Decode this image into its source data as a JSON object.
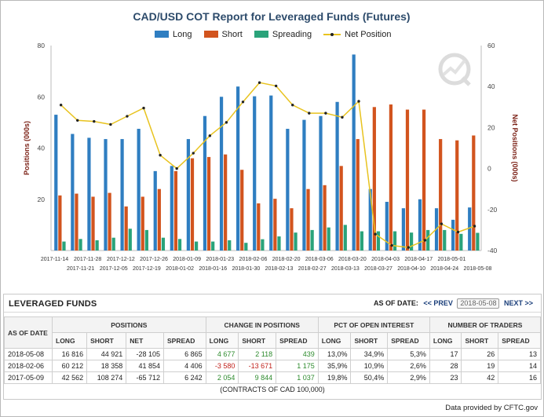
{
  "chart_data": {
    "type": "bar",
    "title": "CAD/USD COT Report for Leveraged Funds (Futures)",
    "ylabel_left": "Positions (000s)",
    "ylabel_right": "Net Positions (000s)",
    "ylim_left": [
      0,
      80
    ],
    "ylim_right": [
      -40,
      60
    ],
    "yticks_left": [
      20,
      40,
      60,
      80
    ],
    "yticks_right": [
      -40,
      -20,
      0,
      20,
      40,
      60
    ],
    "grid": false,
    "legend_position": "top",
    "categories": [
      "2017-11-14",
      "2017-11-21",
      "2017-11-28",
      "2017-12-05",
      "2017-12-12",
      "2017-12-19",
      "2017-12-26",
      "2018-01-02",
      "2018-01-09",
      "2018-01-16",
      "2018-01-23",
      "2018-01-30",
      "2018-02-06",
      "2018-02-13",
      "2018-02-20",
      "2018-02-27",
      "2018-03-06",
      "2018-03-13",
      "2018-03-20",
      "2018-03-27",
      "2018-04-03",
      "2018-04-10",
      "2018-04-17",
      "2018-04-24",
      "2018-05-01",
      "2018-05-08"
    ],
    "label_rows": [
      [
        "2017-11-14",
        "2017-11-28",
        "2017-12-12",
        "2017-12-26",
        "2018-01-09",
        "2018-01-23",
        "2018-02-06",
        "2018-02-20",
        "2018-03-06",
        "2018-03-20",
        "2018-04-03",
        "2018-04-17",
        "2018-05-01"
      ],
      [
        "2017-11-21",
        "2017-12-05",
        "2017-12-19",
        "2018-01-02",
        "2018-01-16",
        "2018-01-30",
        "2018-02-13",
        "2018-02-27",
        "2018-03-13",
        "2018-03-27",
        "2018-04-10",
        "2018-04-24",
        "2018-05-08"
      ]
    ],
    "series": [
      {
        "name": "Long",
        "axis": "left",
        "color": "#2f7ec1",
        "values": [
          53,
          45.5,
          44,
          43.5,
          43.5,
          47.5,
          31,
          33,
          43.5,
          52.5,
          60,
          64,
          60.2,
          60.5,
          47.5,
          51,
          52.5,
          58,
          76.5,
          24,
          19,
          16.5,
          20,
          16.5,
          12,
          16.8
        ]
      },
      {
        "name": "Short",
        "axis": "left",
        "color": "#d2541e",
        "values": [
          21.5,
          22.2,
          21,
          22.5,
          17.2,
          21,
          24,
          31,
          36,
          36.5,
          37.5,
          31.5,
          18.4,
          20.2,
          16.5,
          24,
          25.5,
          33,
          43.5,
          56,
          57,
          55,
          55,
          43.5,
          43,
          44.9
        ]
      },
      {
        "name": "Spreading",
        "axis": "left",
        "color": "#2aa37a",
        "values": [
          3.5,
          4.5,
          4,
          5,
          8.5,
          8,
          5,
          4.5,
          3.5,
          3.5,
          4,
          3,
          4.4,
          5.5,
          7,
          8,
          9,
          10,
          7.5,
          7.5,
          7.5,
          7,
          8,
          8,
          6.5,
          6.9
        ]
      },
      {
        "name": "Net Position",
        "axis": "right",
        "color": "#e8c31f",
        "values": [
          31,
          23.5,
          23,
          21.5,
          25.5,
          29.5,
          6.5,
          0,
          7.5,
          16,
          22.5,
          32.5,
          41.9,
          40.3,
          31,
          27,
          27,
          25,
          32.8,
          -32,
          -37.5,
          -38.5,
          -35,
          -27,
          -31,
          -28.1
        ]
      }
    ]
  },
  "legend": {
    "long": "Long",
    "short": "Short",
    "spreading": "Spreading",
    "net": "Net Position"
  },
  "panel": {
    "title": "LEVERAGED FUNDS",
    "asof_label": "AS OF DATE:",
    "prev_label": "<< PREV",
    "selected_date": "2018-05-08",
    "next_label": "NEXT >>",
    "headers": {
      "as_of_date": "AS OF DATE",
      "positions": "POSITIONS",
      "change": "CHANGE IN POSITIONS",
      "pct": "PCT OF OPEN INTEREST",
      "traders": "NUMBER OF TRADERS",
      "sub": [
        "LONG",
        "SHORT",
        "NET",
        "SPREAD",
        "LONG",
        "SHORT",
        "SPREAD",
        "LONG",
        "SHORT",
        "SPREAD",
        "LONG",
        "SHORT",
        "SPREAD"
      ]
    },
    "rows": [
      {
        "date": "2018-05-08",
        "cells": [
          "16 816",
          "44 921",
          "-28 105",
          "6 865",
          "4 677",
          "2 118",
          "439",
          "13,0%",
          "34,9%",
          "5,3%",
          "17",
          "26",
          "13"
        ],
        "change_signs": [
          "pos",
          "pos",
          "pos"
        ]
      },
      {
        "date": "2018-02-06",
        "cells": [
          "60 212",
          "18 358",
          "41 854",
          "4 406",
          "-3 580",
          "-13 671",
          "1 175",
          "35,9%",
          "10,9%",
          "2,6%",
          "28",
          "19",
          "14"
        ],
        "change_signs": [
          "neg",
          "neg",
          "pos"
        ]
      },
      {
        "date": "2017-05-09",
        "cells": [
          "42 562",
          "108 274",
          "-65 712",
          "6 242",
          "2 054",
          "9 844",
          "1 037",
          "19,8%",
          "50,4%",
          "2,9%",
          "23",
          "42",
          "16"
        ],
        "change_signs": [
          "pos",
          "pos",
          "pos"
        ]
      }
    ],
    "footer": "(CONTRACTS OF CAD 100,000)"
  },
  "credit": "Data provided by CFTC.gov"
}
